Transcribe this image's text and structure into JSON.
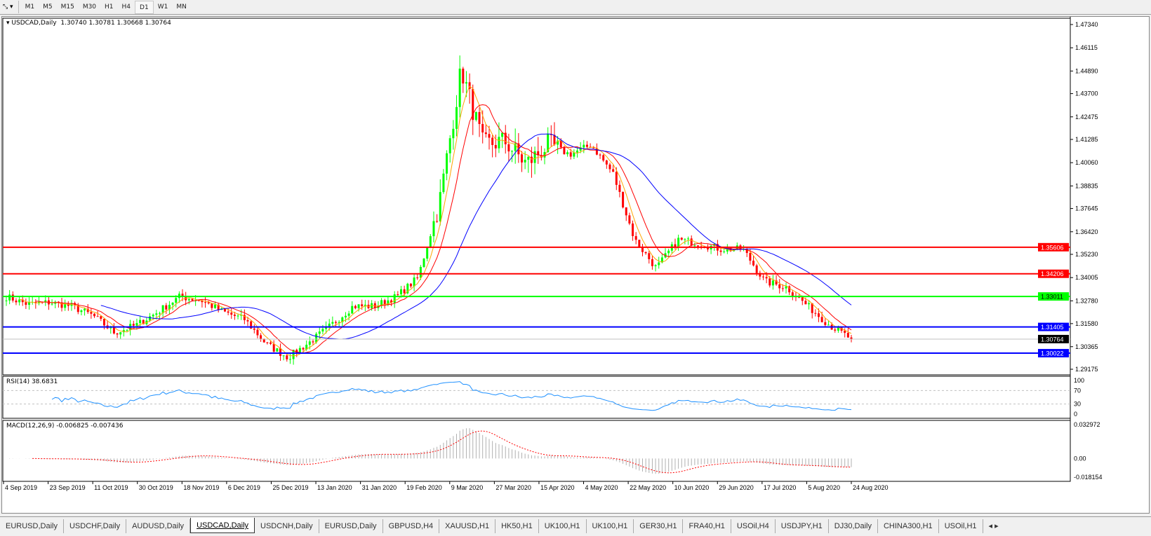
{
  "toolbar": {
    "timeframes": [
      "M1",
      "M5",
      "M15",
      "M30",
      "H1",
      "H4",
      "D1",
      "W1",
      "MN"
    ],
    "active": "D1"
  },
  "header": {
    "symbol": "USDCAD,Daily",
    "ohlc": "1.30740 1.30781 1.30668 1.30764"
  },
  "rsi": {
    "label": "RSI(14) 38.6831",
    "levels": [
      "100",
      "70",
      "30",
      "0"
    ],
    "color": "#1e90ff"
  },
  "macd": {
    "label": "MACD(12,26,9) -0.006825 -0.007436",
    "scale": [
      "0.032972",
      "0.00",
      "-0.018154"
    ]
  },
  "tabs": [
    "EURUSD,Daily",
    "USDCHF,Daily",
    "AUDUSD,Daily",
    "USDCAD,Daily",
    "USDCNH,Daily",
    "EURUSD,Daily",
    "GBPUSD,H4",
    "XAUUSD,H1",
    "HK50,H1",
    "UK100,H1",
    "UK100,H1",
    "GER30,H1",
    "FRA40,H1",
    "USOil,H4",
    "USDJPY,H1",
    "DJ30,Daily",
    "CHINA300,H1",
    "USOil,H1"
  ],
  "active_tab": "USDCAD,Daily",
  "chart_data": {
    "type": "candlestick",
    "symbol": "USDCAD",
    "timeframe": "Daily",
    "ylim": [
      1.29175,
      1.4734
    ],
    "y_ticks": [
      "1.47340",
      "1.46115",
      "1.44890",
      "1.43700",
      "1.42475",
      "1.41285",
      "1.40060",
      "1.38835",
      "1.37645",
      "1.36420",
      "1.35230",
      "1.34005",
      "1.32780",
      "1.31580",
      "1.30365",
      "1.29175"
    ],
    "x_ticks": [
      "4 Sep 2019",
      "23 Sep 2019",
      "11 Oct 2019",
      "30 Oct 2019",
      "18 Nov 2019",
      "6 Dec 2019",
      "25 Dec 2019",
      "13 Jan 2020",
      "31 Jan 2020",
      "19 Feb 2020",
      "9 Mar 2020",
      "27 Mar 2020",
      "15 Apr 2020",
      "4 May 2020",
      "22 May 2020",
      "10 Jun 2020",
      "29 Jun 2020",
      "17 Jul 2020",
      "5 Aug 2020",
      "24 Aug 2020"
    ],
    "approx_closes": [
      1.33,
      1.326,
      1.327,
      1.325,
      1.32,
      1.311,
      1.315,
      1.322,
      1.33,
      1.328,
      1.322,
      1.318,
      1.305,
      1.298,
      1.306,
      1.315,
      1.325,
      1.325,
      1.33,
      1.34,
      1.38,
      1.45,
      1.41,
      1.412,
      1.4,
      1.41,
      1.405,
      1.41,
      1.395,
      1.36,
      1.345,
      1.36,
      1.358,
      1.355,
      1.355,
      1.338,
      1.335,
      1.325,
      1.315,
      1.30764
    ],
    "horizontal_lines": [
      {
        "price": "1.35606",
        "color": "#ff0000"
      },
      {
        "price": "1.34206",
        "color": "#ff0000"
      },
      {
        "price": "1.33011",
        "color": "#00ff00"
      },
      {
        "price": "1.31405",
        "color": "#0000ff"
      },
      {
        "price": "1.30022",
        "color": "#0000ff"
      }
    ],
    "current_price": "1.30764",
    "moving_averages": [
      {
        "period": 5,
        "color": "#ffa500"
      },
      {
        "period": 10,
        "color": "#ff0000"
      },
      {
        "period": 30,
        "color": "#0000ff"
      }
    ],
    "bull_color": "#00ff00",
    "bear_color": "#ff0000"
  }
}
